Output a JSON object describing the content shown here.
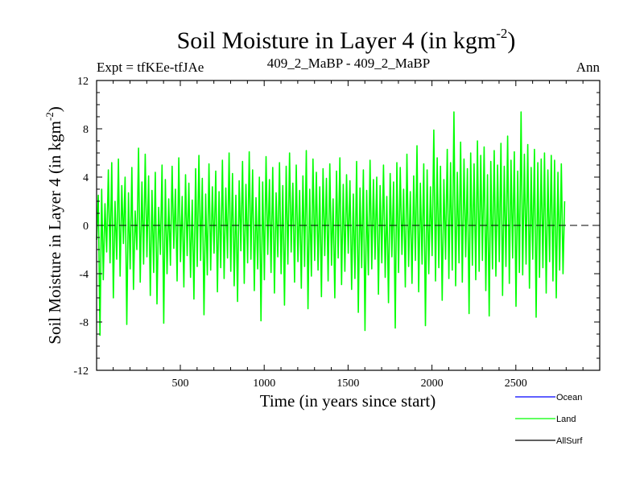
{
  "chart_data": {
    "type": "line",
    "title": "Soil Moisture in Layer 4 (in kgm",
    "title_sup": "-2",
    "title_close": ")",
    "subtitle_left": "Expt = tfKEe-tfJAe",
    "subtitle_center": "409_2_MaBP - 409_2_MaBP",
    "subtitle_right": "Ann",
    "xlabel": "Time (in years since start)",
    "ylabel": "Soil Moisture in Layer 4 (in kgm",
    "ylabel_sup": "-2",
    "ylabel_close": ")",
    "xlim": [
      1,
      3000
    ],
    "ylim": [
      -12,
      12
    ],
    "x_ticks": [
      500,
      1000,
      1500,
      2000,
      2500
    ],
    "y_ticks": [
      -12,
      -8,
      -4,
      0,
      4,
      8,
      12
    ],
    "zero_line": true,
    "series": [
      {
        "name": "Ocean",
        "color": "#0000ff",
        "values": []
      },
      {
        "name": "Land",
        "color": "#00ff00",
        "x_start": 1,
        "x_step": 10,
        "values": [
          -1.2,
          2.5,
          -9.1,
          3.0,
          -4.5,
          1.8,
          -2.2,
          4.6,
          -3.1,
          5.2,
          -6.0,
          2.0,
          -2.8,
          5.5,
          -4.2,
          3.3,
          -1.5,
          4.0,
          -8.2,
          2.7,
          -3.6,
          4.8,
          -5.3,
          1.2,
          -2.0,
          6.4,
          -4.7,
          3.6,
          -3.2,
          5.9,
          -2.6,
          4.1,
          -5.8,
          2.9,
          -3.9,
          4.4,
          -6.5,
          1.5,
          -2.4,
          5.0,
          -8.1,
          3.8,
          -4.0,
          2.2,
          -3.3,
          4.9,
          -1.9,
          3.0,
          -4.6,
          5.6,
          -3.0,
          2.4,
          -5.1,
          4.2,
          -2.5,
          3.5,
          -4.3,
          2.1,
          -6.1,
          4.7,
          -3.4,
          5.8,
          -2.9,
          3.9,
          -7.4,
          2.6,
          -4.1,
          5.1,
          -3.7,
          3.2,
          -2.3,
          4.5,
          -5.5,
          2.8,
          -3.5,
          5.4,
          -4.4,
          3.1,
          -2.7,
          6.0,
          -3.8,
          4.3,
          -5.0,
          2.5,
          -6.3,
          3.7,
          -2.1,
          5.3,
          -4.8,
          3.4,
          -3.1,
          6.1,
          -2.8,
          4.6,
          -5.4,
          2.3,
          -3.6,
          4.0,
          -7.9,
          3.6,
          -4.5,
          5.7,
          -2.4,
          3.8,
          -3.9,
          4.8,
          -5.6,
          2.7,
          -2.6,
          5.2,
          -4.0,
          3.3,
          -6.6,
          4.9,
          -3.2,
          6.0,
          -2.2,
          3.5,
          -4.7,
          5.0,
          -3.0,
          2.9,
          -5.2,
          4.1,
          -3.4,
          6.2,
          -6.9,
          3.0,
          -4.2,
          5.5,
          -2.9,
          4.4,
          -3.7,
          3.2,
          -5.9,
          4.7,
          -2.5,
          3.9,
          -4.6,
          5.1,
          -3.3,
          2.2,
          -6.0,
          4.5,
          -2.7,
          5.6,
          -4.9,
          3.4,
          -3.8,
          4.2,
          -2.3,
          3.7,
          -5.3,
          2.6,
          -4.4,
          5.3,
          -7.2,
          3.1,
          -3.5,
          4.6,
          -8.7,
          2.9,
          -4.1,
          5.4,
          -3.6,
          3.8,
          -2.8,
          4.0,
          -5.7,
          3.3,
          -3.1,
          5.0,
          -4.3,
          2.4,
          -6.4,
          4.3,
          -2.6,
          3.6,
          -8.5,
          5.2,
          -3.9,
          4.8,
          -2.4,
          3.0,
          -5.1,
          5.9,
          -3.4,
          2.8,
          -4.8,
          4.1,
          -2.9,
          6.6,
          -5.5,
          3.5,
          -3.2,
          5.1,
          -8.3,
          4.6,
          -4.0,
          3.2,
          -2.5,
          7.9,
          -4.6,
          5.6,
          -3.5,
          4.9,
          -6.2,
          3.8,
          -2.8,
          6.3,
          -4.4,
          5.2,
          -3.7,
          9.4,
          -5.0,
          4.4,
          -3.1,
          6.9,
          -4.7,
          5.5,
          -2.6,
          4.7,
          -7.3,
          6.0,
          -3.3,
          5.1,
          -4.5,
          7.0,
          -3.8,
          5.8,
          -2.9,
          6.5,
          -5.4,
          4.2,
          -7.5,
          5.3,
          -3.6,
          6.2,
          -4.2,
          5.0,
          -3.0,
          6.8,
          -5.8,
          4.9,
          -3.4,
          7.4,
          -4.8,
          5.4,
          -2.7,
          6.1,
          -6.7,
          4.5,
          -3.9,
          9.4,
          -4.1,
          5.9,
          -3.2,
          6.7,
          -5.2,
          4.8,
          -2.8,
          6.3,
          -7.6,
          5.2,
          -4.3,
          5.5,
          -3.5,
          6.0,
          -5.6,
          4.6,
          -3.0,
          5.8,
          -4.6,
          5.4,
          -6.0,
          4.4,
          -3.7,
          5.1,
          -4.0,
          2.0
        ]
      },
      {
        "name": "AllSurf",
        "color": "#000000",
        "values": []
      }
    ],
    "legend_position": "bottom-right"
  }
}
